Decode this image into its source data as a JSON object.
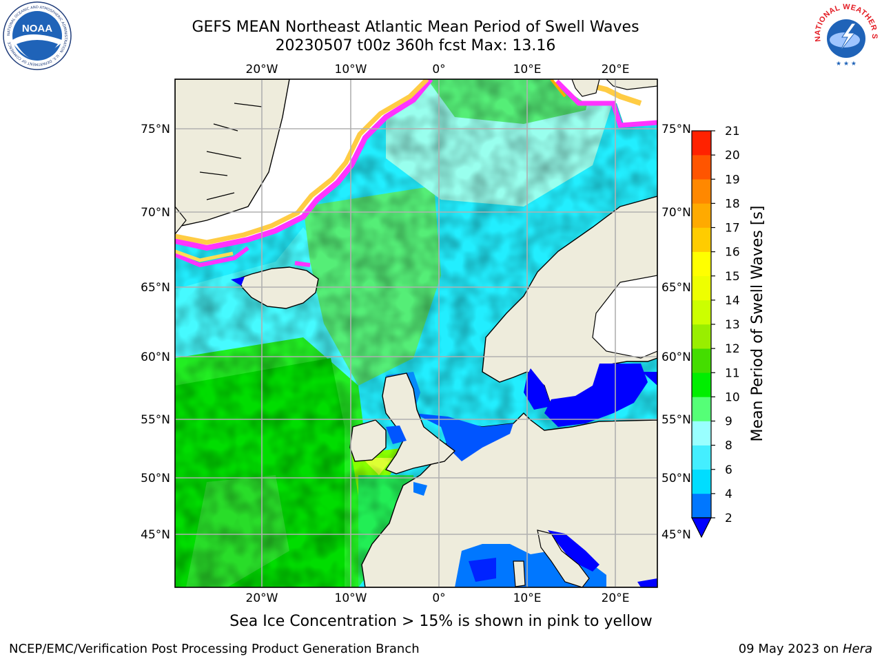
{
  "header": {
    "title_line1": "GEFS MEAN Northeast Atlantic Mean Period of Swell Waves",
    "title_line2": "20230507 t00z 360h fcst   Max: 13.16"
  },
  "logos": {
    "left": {
      "name": "noaa-logo",
      "text": "NOAA",
      "ring_text": "NATIONAL OCEANIC AND ATMOSPHERIC ADMINISTRATION · U.S. DEPARTMENT OF COMMERCE"
    },
    "right": {
      "name": "national-weather-service-logo",
      "ring_text": "NATIONAL WEATHER SERVICE"
    }
  },
  "map": {
    "lon_labels": [
      "20°W",
      "10°W",
      "0°",
      "10°E",
      "20°E"
    ],
    "lat_labels": [
      "75°N",
      "70°N",
      "65°N",
      "60°N",
      "55°N",
      "50°N",
      "45°N"
    ],
    "colors": {
      "land": "#eeecdc",
      "ice_free": "#ffffff",
      "grid": "#b0b0b0",
      "sea_ice_pink": "#ff33ff",
      "sea_ice_yellow": "#ffdd55"
    }
  },
  "colorbar": {
    "label": "Mean Period of Swell Waves [s]",
    "ticks": [
      "2",
      "4",
      "6",
      "8",
      "9",
      "10",
      "11",
      "12",
      "13",
      "14",
      "15",
      "16",
      "17",
      "18",
      "19",
      "20",
      "21"
    ],
    "colors": [
      "#0077ff",
      "#00ddff",
      "#44eeff",
      "#99ffff",
      "#55ff77",
      "#00ee00",
      "#44dd00",
      "#99ee00",
      "#ccff00",
      "#eeff00",
      "#ffff00",
      "#ffcc00",
      "#ffaa00",
      "#ff8800",
      "#ff5500",
      "#ff2200"
    ],
    "under_color": "#0000ff"
  },
  "note": "Sea Ice Concentration > 15% is shown in pink to yellow",
  "footer": {
    "left": "NCEP/EMC/Verification Post Processing Product Generation Branch",
    "date": "09 May 2023 on ",
    "machine": "Hera"
  }
}
